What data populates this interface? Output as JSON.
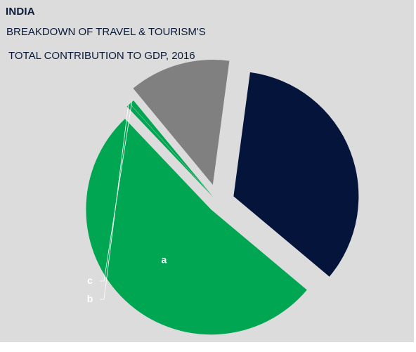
{
  "header": {
    "country": "INDIA",
    "title_line1": "BREAKDOWN OF TRAVEL & TOURISM'S",
    "title_line2": "TOTAL CONTRIBUTION TO GDP, 2016"
  },
  "chart_data": {
    "type": "pie",
    "title": "BREAKDOWN OF TRAVEL & TOURISM'S TOTAL CONTRIBUTION TO GDP, 2016",
    "slices": [
      {
        "label": "a",
        "value": 51.8,
        "color": "#00a651"
      },
      {
        "label": "b",
        "value": 0.5,
        "color": "#00a651"
      },
      {
        "label": "c",
        "value": 0.6,
        "color": "#00a651"
      },
      {
        "label": "",
        "value": 13.1,
        "color": "#808080"
      },
      {
        "label": "",
        "value": 34.0,
        "color": "#04143a"
      }
    ],
    "legend": "none",
    "exploded": true
  }
}
